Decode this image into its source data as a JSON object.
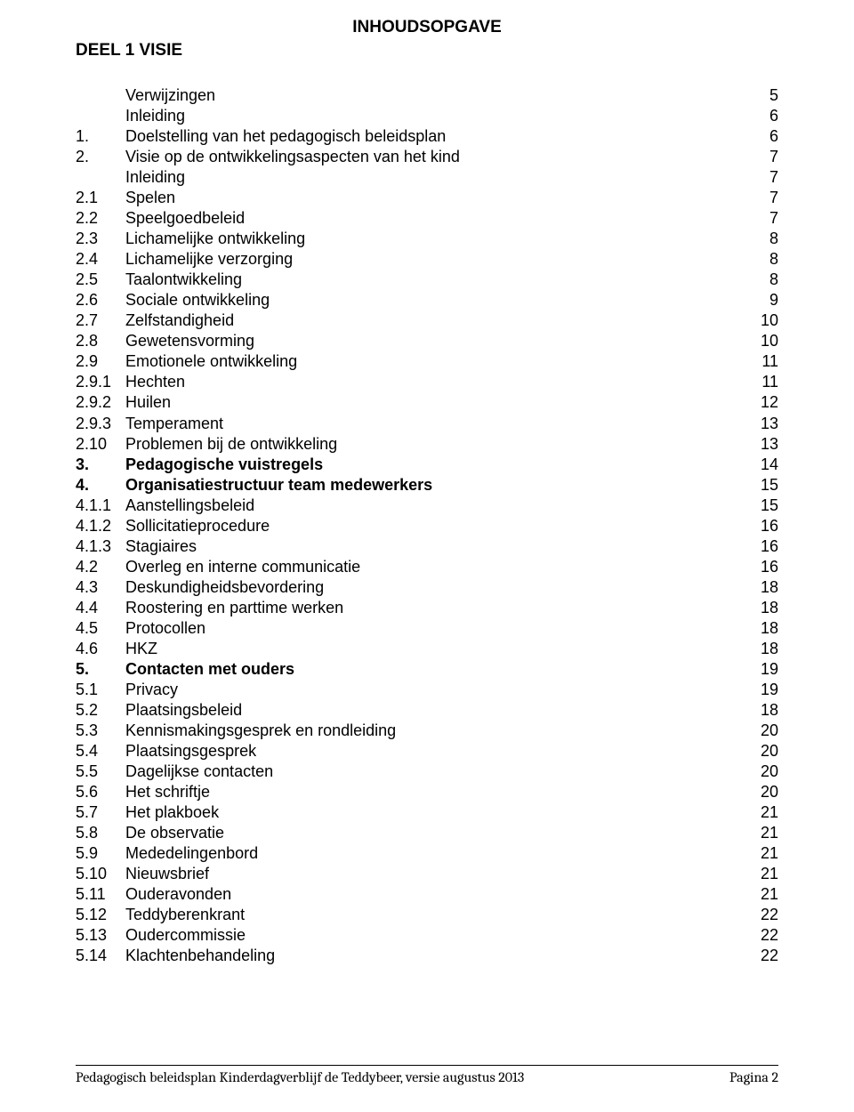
{
  "page": {
    "title_center": "INHOUDSOPGAVE",
    "section": "DEEL 1   VISIE",
    "footer_left": "Pedagogisch beleidsplan Kinderdagverblijf de Teddybeer, versie augustus 2013",
    "footer_right": "Pagina 2"
  },
  "toc": [
    {
      "num": "",
      "label": "Verwijzingen",
      "page": "5",
      "bold": false,
      "indent": false
    },
    {
      "num": "",
      "label": "Inleiding",
      "page": "6",
      "bold": false,
      "indent": false
    },
    {
      "num": "1.",
      "label": "Doelstelling van het pedagogisch beleidsplan",
      "page": "6",
      "bold": false,
      "indent": false
    },
    {
      "num": "2.",
      "label": "Visie op de ontwikkelingsaspecten van het kind",
      "page": "7",
      "bold": false,
      "indent": false
    },
    {
      "num": "",
      "label": "Inleiding",
      "page": "7",
      "bold": false,
      "indent": true
    },
    {
      "num": "2.1",
      "label": "Spelen",
      "page": "7",
      "bold": false,
      "indent": false
    },
    {
      "num": "2.2",
      "label": "Speelgoedbeleid",
      "page": "7",
      "bold": false,
      "indent": false
    },
    {
      "num": "2.3",
      "label": "Lichamelijke ontwikkeling",
      "page": "8",
      "bold": false,
      "indent": false
    },
    {
      "num": "2.4",
      "label": "Lichamelijke verzorging",
      "page": "8",
      "bold": false,
      "indent": false
    },
    {
      "num": "2.5",
      "label": "Taalontwikkeling",
      "page": "8",
      "bold": false,
      "indent": false
    },
    {
      "num": "2.6",
      "label": "Sociale ontwikkeling",
      "page": "9",
      "bold": false,
      "indent": false
    },
    {
      "num": "2.7",
      "label": "Zelfstandigheid",
      "page": "10",
      "bold": false,
      "indent": false
    },
    {
      "num": "2.8",
      "label": "Gewetensvorming",
      "page": "10",
      "bold": false,
      "indent": false
    },
    {
      "num": "2.9",
      "label": "Emotionele ontwikkeling",
      "page": "11",
      "bold": false,
      "indent": false
    },
    {
      "num": "2.9.1",
      "label": "Hechten",
      "page": "11",
      "bold": false,
      "indent": false
    },
    {
      "num": "2.9.2",
      "label": "Huilen",
      "page": "12",
      "bold": false,
      "indent": false
    },
    {
      "num": "2.9.3",
      "label": "Temperament",
      "page": "13",
      "bold": false,
      "indent": false
    },
    {
      "num": "2.10",
      "label": "Problemen bij de ontwikkeling",
      "page": "13",
      "bold": false,
      "indent": false
    },
    {
      "num": "3.",
      "label": "Pedagogische vuistregels",
      "page": "14",
      "bold": true,
      "indent": false
    },
    {
      "num": "4.",
      "label": "Organisatiestructuur team medewerkers",
      "page": "15",
      "bold": true,
      "indent": false
    },
    {
      "num": "4.1.1",
      "label": "Aanstellingsbeleid",
      "page": "15",
      "bold": false,
      "indent": false
    },
    {
      "num": "4.1.2",
      "label": "Sollicitatieprocedure",
      "page": "16",
      "bold": false,
      "indent": false
    },
    {
      "num": "4.1.3",
      "label": "Stagiaires",
      "page": "16",
      "bold": false,
      "indent": false
    },
    {
      "num": "4.2",
      "label": "Overleg en interne communicatie",
      "page": "16",
      "bold": false,
      "indent": false
    },
    {
      "num": "4.3",
      "label": "Deskundigheidsbevordering",
      "page": "18",
      "bold": false,
      "indent": false
    },
    {
      "num": "4.4",
      "label": "Roostering en parttime werken",
      "page": "18",
      "bold": false,
      "indent": false
    },
    {
      "num": "4.5",
      "label": "Protocollen",
      "page": "18",
      "bold": false,
      "indent": false
    },
    {
      "num": "4.6",
      "label": "HKZ",
      "page": "18",
      "bold": false,
      "indent": false
    },
    {
      "num": "5.",
      "label": "Contacten met ouders",
      "page": "19",
      "bold": true,
      "indent": false
    },
    {
      "num": "5.1",
      "label": "Privacy",
      "page": "19",
      "bold": false,
      "indent": false
    },
    {
      "num": "5.2",
      "label": "Plaatsingsbeleid",
      "page": "18",
      "bold": false,
      "indent": false
    },
    {
      "num": "5.3",
      "label": "Kennismakingsgesprek en rondleiding",
      "page": "20",
      "bold": false,
      "indent": false
    },
    {
      "num": "5.4",
      "label": "Plaatsingsgesprek",
      "page": "20",
      "bold": false,
      "indent": false
    },
    {
      "num": "5.5",
      "label": "Dagelijkse contacten",
      "page": "20",
      "bold": false,
      "indent": false
    },
    {
      "num": "5.6",
      "label": "Het schriftje",
      "page": "20",
      "bold": false,
      "indent": false
    },
    {
      "num": "5.7",
      "label": "Het plakboek",
      "page": "21",
      "bold": false,
      "indent": false
    },
    {
      "num": "5.8",
      "label": "De observatie",
      "page": "21",
      "bold": false,
      "indent": false
    },
    {
      "num": "5.9",
      "label": "Mededelingenbord",
      "page": "21",
      "bold": false,
      "indent": false
    },
    {
      "num": "5.10",
      "label": "Nieuwsbrief",
      "page": "21",
      "bold": false,
      "indent": false
    },
    {
      "num": "5.11",
      "label": "Ouderavonden",
      "page": "21",
      "bold": false,
      "indent": false
    },
    {
      "num": "5.12",
      "label": "Teddyberenkrant",
      "page": "22",
      "bold": false,
      "indent": false
    },
    {
      "num": "5.13",
      "label": "Oudercommissie",
      "page": "22",
      "bold": false,
      "indent": false
    },
    {
      "num": "5.14",
      "label": "Klachtenbehandeling",
      "page": "22",
      "bold": false,
      "indent": false
    }
  ]
}
